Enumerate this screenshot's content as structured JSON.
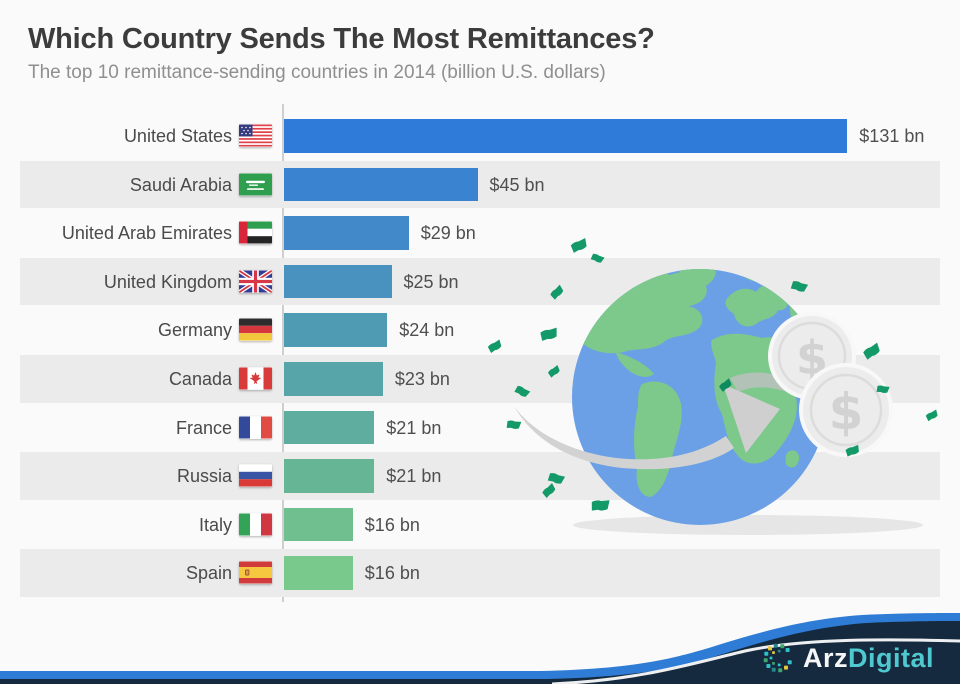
{
  "chart_data": {
    "type": "bar",
    "orientation": "horizontal",
    "title": "Which Country Sends The Most Remittances?",
    "subtitle": "The top 10 remittance-sending countries in 2014 (billion U.S. dollars)",
    "unit": "billion U.S. dollars",
    "year": "2014",
    "xlim": [
      0,
      131
    ],
    "grid": false,
    "legend": "none",
    "categories": [
      "United States",
      "Saudi Arabia",
      "United Arab Emirates",
      "United Kingdom",
      "Germany",
      "Canada",
      "France",
      "Russia",
      "Italy",
      "Spain"
    ],
    "values": [
      131,
      45,
      29,
      25,
      24,
      23,
      21,
      21,
      16,
      16
    ],
    "value_labels": [
      "$131 bn",
      "$45 bn",
      "$29 bn",
      "$25 bn",
      "$24 bn",
      "$23 bn",
      "$21 bn",
      "$21 bn",
      "$16 bn",
      "$16 bn"
    ],
    "bar_colors": [
      "#2e7bd9",
      "#3a83d0",
      "#4189c8",
      "#4992bf",
      "#509bb4",
      "#57a4a9",
      "#5ead9e",
      "#66b695",
      "#6fc08e",
      "#79c98c"
    ],
    "flags": [
      "us",
      "sa",
      "ae",
      "gb",
      "de",
      "ca",
      "fr",
      "ru",
      "it",
      "es"
    ],
    "row_stripe_color": "#ebebeb"
  },
  "illustration": {
    "globe_ocean_color": "#6ba0e6",
    "globe_land_color": "#7cc98b",
    "money_color": "#149a68",
    "money_dark_color": "#0d8a5e",
    "coin_color": "#ececec",
    "coin_symbol_color": "#d2d2d2",
    "arrow_color": "#d2d2d2",
    "shadow_color": "#e6e6e6",
    "coin_symbol": "$"
  },
  "footer": {
    "brand_arz": "Arz",
    "brand_digital": "Digital",
    "wave_blue": "#2e7cd6",
    "wave_navy": "#152a3e",
    "brand_teal": "#4fc9cf"
  }
}
